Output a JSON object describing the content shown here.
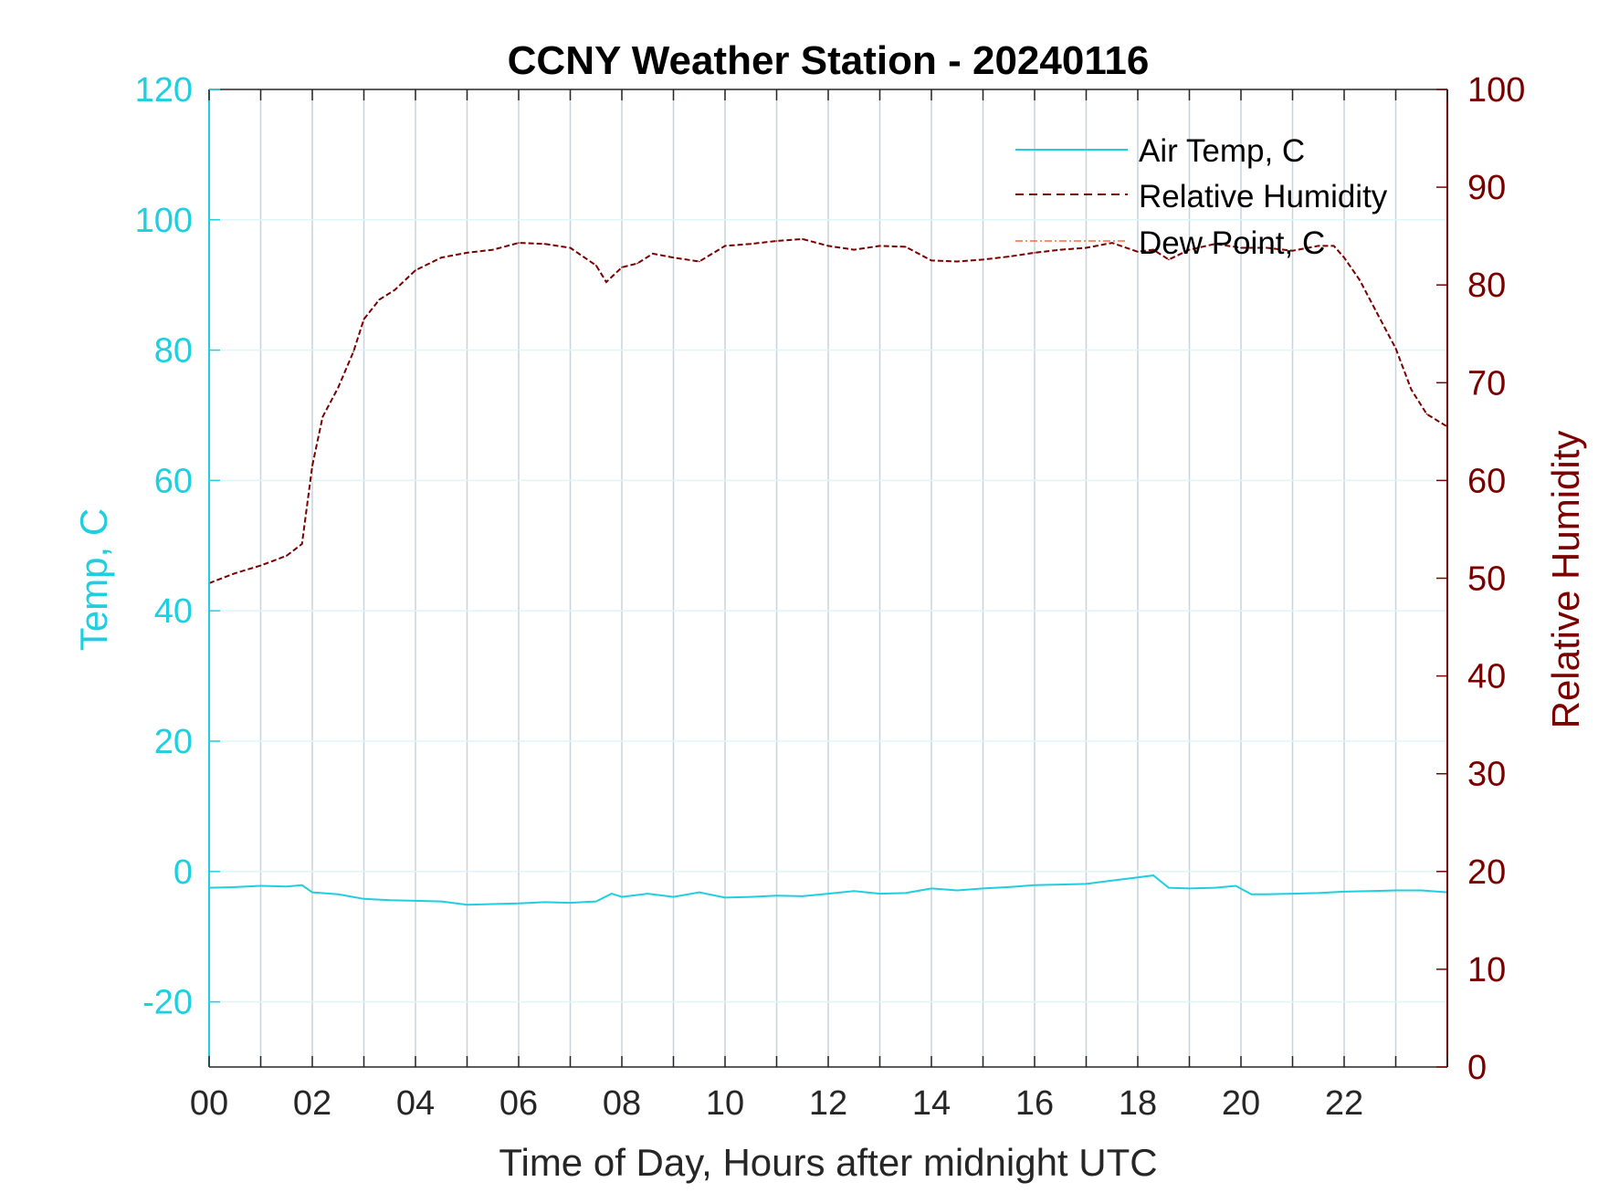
{
  "chart_data": {
    "type": "line",
    "title": "CCNY Weather Station - 20240116",
    "xlabel": "Time of Day, Hours after midnight UTC",
    "ylabel_left": "Temp, C",
    "ylabel_right": "Relative Humidity",
    "xlim": [
      0,
      24
    ],
    "ylim_left": [
      -30,
      120
    ],
    "ylim_right": [
      0,
      100
    ],
    "x_ticks": [
      0,
      2,
      4,
      6,
      8,
      10,
      12,
      14,
      16,
      18,
      20,
      22
    ],
    "x_tick_labels": [
      "00",
      "02",
      "04",
      "06",
      "08",
      "10",
      "12",
      "14",
      "16",
      "18",
      "20",
      "22"
    ],
    "y_left_ticks": [
      -20,
      0,
      20,
      40,
      60,
      80,
      100,
      120
    ],
    "y_left_tick_labels": [
      "-20",
      "0",
      "20",
      "40",
      "60",
      "80",
      "100",
      "120"
    ],
    "y_right_ticks": [
      0,
      10,
      20,
      30,
      40,
      50,
      60,
      70,
      80,
      90,
      100
    ],
    "y_right_tick_labels": [
      "0",
      "10",
      "20",
      "30",
      "40",
      "50",
      "60",
      "70",
      "80",
      "90",
      "100"
    ],
    "grid": true,
    "legend_position": "top-right",
    "colors": {
      "air_temp": "#1fcfe0",
      "relative_humidity": "#7a0000",
      "dew_point": "#ff6a3a",
      "grid": "#c8d3dc",
      "axis": "#262626"
    },
    "series": [
      {
        "name": "Air Temp, C",
        "axis": "left",
        "style": "solid",
        "x": [
          0,
          0.5,
          1,
          1.5,
          1.8,
          2,
          2.5,
          3,
          3.5,
          4,
          4.5,
          5,
          5.5,
          6,
          6.5,
          7,
          7.5,
          7.8,
          8,
          8.5,
          9,
          9.5,
          10,
          10.5,
          11,
          11.5,
          12,
          12.5,
          13,
          13.5,
          14,
          14.5,
          15,
          15.5,
          16,
          16.5,
          17,
          17.5,
          18,
          18.3,
          18.6,
          19,
          19.5,
          19.9,
          20.2,
          20.5,
          21,
          21.5,
          22,
          22.5,
          23,
          23.5,
          24
        ],
        "y": [
          -2.5,
          -2.4,
          -2.2,
          -2.3,
          -2.1,
          -3.2,
          -3.5,
          -4.2,
          -4.4,
          -4.5,
          -4.6,
          -5.1,
          -5.0,
          -4.9,
          -4.7,
          -4.8,
          -4.6,
          -3.4,
          -3.9,
          -3.4,
          -3.9,
          -3.2,
          -4.0,
          -3.9,
          -3.7,
          -3.8,
          -3.4,
          -3.0,
          -3.4,
          -3.3,
          -2.6,
          -2.9,
          -2.6,
          -2.4,
          -2.1,
          -2.0,
          -1.9,
          -1.4,
          -0.9,
          -0.6,
          -2.5,
          -2.6,
          -2.5,
          -2.2,
          -3.5,
          -3.5,
          -3.4,
          -3.3,
          -3.1,
          -3.0,
          -2.9,
          -2.9,
          -3.2
        ]
      },
      {
        "name": "Relative Humidity",
        "axis": "right",
        "style": "dashed",
        "x": [
          0,
          0.5,
          1,
          1.5,
          1.8,
          2,
          2.2,
          2.5,
          2.8,
          3,
          3.3,
          3.6,
          4,
          4.5,
          5,
          5.5,
          6,
          6.5,
          7,
          7.5,
          7.7,
          8,
          8.3,
          8.6,
          9,
          9.5,
          10,
          10.5,
          11,
          11.5,
          12,
          12.5,
          13,
          13.5,
          14,
          14.5,
          15,
          15.5,
          16,
          16.5,
          17,
          17.5,
          18,
          18.3,
          18.6,
          19,
          19.5,
          20,
          20.5,
          21,
          21.5,
          21.8,
          22,
          22.3,
          22.6,
          23,
          23.3,
          23.6,
          24
        ],
        "y": [
          49.5,
          50.5,
          51.3,
          52.3,
          53.5,
          61.5,
          66.5,
          69.5,
          73.2,
          76.5,
          78.5,
          79.5,
          81.5,
          82.8,
          83.3,
          83.6,
          84.3,
          84.2,
          83.8,
          82.0,
          80.3,
          81.8,
          82.2,
          83.2,
          82.8,
          82.4,
          84.0,
          84.2,
          84.5,
          84.7,
          84.0,
          83.6,
          84.0,
          83.9,
          82.5,
          82.4,
          82.6,
          82.9,
          83.3,
          83.6,
          83.8,
          84.3,
          83.4,
          83.6,
          82.6,
          83.6,
          84.2,
          83.8,
          83.8,
          83.5,
          84.0,
          84.0,
          82.8,
          80.5,
          77.5,
          73.5,
          69.3,
          66.8,
          65.5
        ]
      },
      {
        "name": "Dew Point, C",
        "axis": "left",
        "style": "dash-dot",
        "x": [],
        "y": []
      }
    ]
  }
}
